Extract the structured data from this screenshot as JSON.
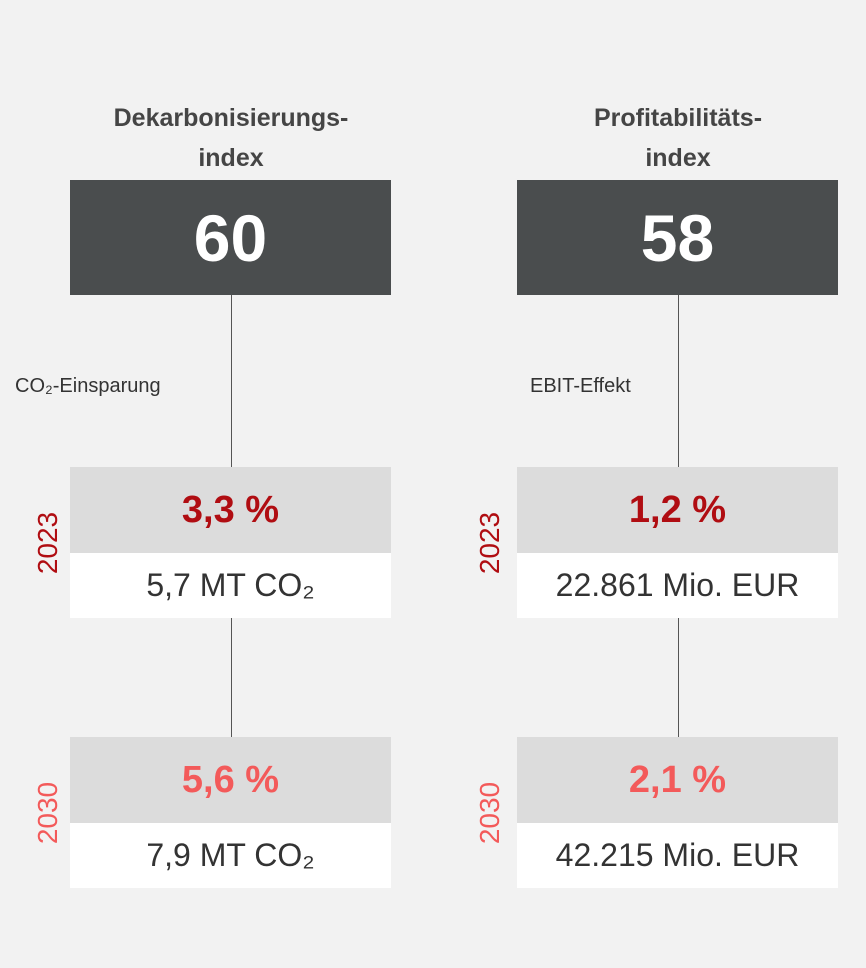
{
  "columns": [
    {
      "title_lines": [
        "Dekarbonisierungs-",
        "index"
      ],
      "index": "60",
      "label": "CO₂-Einsparung",
      "rows": [
        {
          "year": "2023",
          "percent": "3,3 %",
          "amount": "5,7 MT CO₂",
          "color": "#b00d12"
        },
        {
          "year": "2030",
          "percent": "5,6 %",
          "amount": "7,9 MT CO₂",
          "color": "#f35a5a"
        }
      ]
    },
    {
      "title_lines": [
        "Profitabilitäts-",
        "index"
      ],
      "index": "58",
      "label": "EBIT-Effekt",
      "rows": [
        {
          "year": "2023",
          "percent": "1,2 %",
          "amount": "22.861 Mio. EUR",
          "color": "#b00d12"
        },
        {
          "year": "2030",
          "percent": "2,1 %",
          "amount": "42.215 Mio. EUR",
          "color": "#f35a5a"
        }
      ]
    }
  ]
}
